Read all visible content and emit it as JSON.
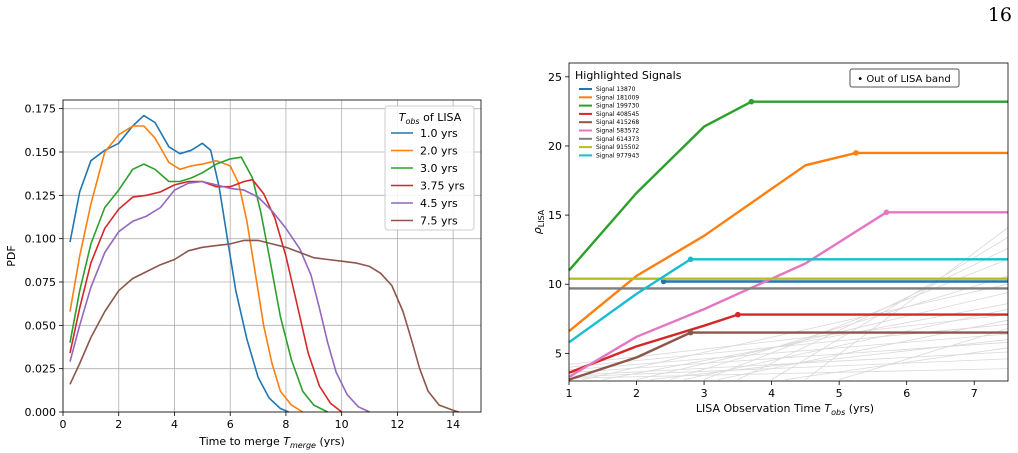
{
  "page_number": "16",
  "chart_data": [
    {
      "type": "line",
      "xlabel": "Time to merge ",
      "xlabel_math": "T",
      "xlabel_sub": "merge",
      "xlabel_unit": " (yrs)",
      "ylabel": "PDF",
      "xlim": [
        0,
        15
      ],
      "ylim": [
        0,
        0.18
      ],
      "xticks": [
        "0",
        "2",
        "4",
        "6",
        "8",
        "10",
        "12",
        "14"
      ],
      "yticks": [
        "0.000",
        "0.025",
        "0.050",
        "0.075",
        "0.100",
        "0.125",
        "0.150",
        "0.175"
      ],
      "grid": true,
      "legend_position": "top-right",
      "legend_title_math": "T",
      "legend_title_sub": "obs",
      "legend_title_rest": " of LISA",
      "series": [
        {
          "name": "1.0 yrs",
          "color": "#1f77b4",
          "points": [
            [
              0.25,
              0.098
            ],
            [
              0.6,
              0.127
            ],
            [
              1.0,
              0.145
            ],
            [
              1.5,
              0.151
            ],
            [
              2.0,
              0.155
            ],
            [
              2.5,
              0.165
            ],
            [
              2.9,
              0.171
            ],
            [
              3.3,
              0.167
            ],
            [
              3.8,
              0.153
            ],
            [
              4.2,
              0.149
            ],
            [
              4.6,
              0.151
            ],
            [
              5.0,
              0.155
            ],
            [
              5.3,
              0.151
            ],
            [
              5.6,
              0.13
            ],
            [
              5.9,
              0.1
            ],
            [
              6.2,
              0.07
            ],
            [
              6.6,
              0.042
            ],
            [
              7.0,
              0.02
            ],
            [
              7.4,
              0.008
            ],
            [
              7.8,
              0.002
            ],
            [
              8.1,
              0.0
            ]
          ]
        },
        {
          "name": "2.0 yrs",
          "color": "#ff7f0e",
          "points": [
            [
              0.25,
              0.058
            ],
            [
              0.6,
              0.09
            ],
            [
              1.0,
              0.12
            ],
            [
              1.5,
              0.15
            ],
            [
              2.0,
              0.16
            ],
            [
              2.5,
              0.165
            ],
            [
              2.9,
              0.165
            ],
            [
              3.3,
              0.158
            ],
            [
              3.8,
              0.144
            ],
            [
              4.2,
              0.14
            ],
            [
              4.6,
              0.142
            ],
            [
              5.0,
              0.143
            ],
            [
              5.5,
              0.145
            ],
            [
              6.0,
              0.142
            ],
            [
              6.3,
              0.132
            ],
            [
              6.6,
              0.11
            ],
            [
              6.9,
              0.08
            ],
            [
              7.2,
              0.05
            ],
            [
              7.5,
              0.028
            ],
            [
              7.8,
              0.012
            ],
            [
              8.2,
              0.004
            ],
            [
              8.6,
              0.0
            ]
          ]
        },
        {
          "name": "3.0 yrs",
          "color": "#2ca02c",
          "points": [
            [
              0.25,
              0.04
            ],
            [
              0.6,
              0.07
            ],
            [
              1.0,
              0.097
            ],
            [
              1.5,
              0.118
            ],
            [
              2.0,
              0.128
            ],
            [
              2.5,
              0.14
            ],
            [
              2.9,
              0.143
            ],
            [
              3.3,
              0.14
            ],
            [
              3.8,
              0.133
            ],
            [
              4.2,
              0.133
            ],
            [
              4.6,
              0.135
            ],
            [
              5.0,
              0.138
            ],
            [
              5.5,
              0.143
            ],
            [
              6.0,
              0.146
            ],
            [
              6.4,
              0.147
            ],
            [
              6.8,
              0.135
            ],
            [
              7.1,
              0.115
            ],
            [
              7.4,
              0.09
            ],
            [
              7.8,
              0.055
            ],
            [
              8.2,
              0.03
            ],
            [
              8.6,
              0.012
            ],
            [
              9.0,
              0.004
            ],
            [
              9.5,
              0.0
            ]
          ]
        },
        {
          "name": "3.75 yrs",
          "color": "#d62728",
          "points": [
            [
              0.25,
              0.034
            ],
            [
              0.6,
              0.06
            ],
            [
              1.0,
              0.086
            ],
            [
              1.5,
              0.106
            ],
            [
              2.0,
              0.117
            ],
            [
              2.5,
              0.124
            ],
            [
              3.0,
              0.125
            ],
            [
              3.5,
              0.127
            ],
            [
              4.0,
              0.131
            ],
            [
              4.5,
              0.133
            ],
            [
              5.0,
              0.133
            ],
            [
              5.5,
              0.13
            ],
            [
              6.0,
              0.13
            ],
            [
              6.5,
              0.133
            ],
            [
              6.8,
              0.134
            ],
            [
              7.2,
              0.126
            ],
            [
              7.6,
              0.112
            ],
            [
              8.0,
              0.09
            ],
            [
              8.4,
              0.062
            ],
            [
              8.8,
              0.034
            ],
            [
              9.2,
              0.015
            ],
            [
              9.6,
              0.005
            ],
            [
              10.0,
              0.0
            ]
          ]
        },
        {
          "name": "4.5 yrs",
          "color": "#9467bd",
          "points": [
            [
              0.25,
              0.029
            ],
            [
              0.6,
              0.05
            ],
            [
              1.0,
              0.072
            ],
            [
              1.5,
              0.092
            ],
            [
              2.0,
              0.104
            ],
            [
              2.5,
              0.11
            ],
            [
              3.0,
              0.113
            ],
            [
              3.5,
              0.118
            ],
            [
              4.0,
              0.128
            ],
            [
              4.5,
              0.132
            ],
            [
              5.0,
              0.133
            ],
            [
              5.5,
              0.131
            ],
            [
              6.0,
              0.129
            ],
            [
              6.5,
              0.128
            ],
            [
              7.0,
              0.124
            ],
            [
              7.5,
              0.116
            ],
            [
              8.0,
              0.106
            ],
            [
              8.5,
              0.094
            ],
            [
              8.9,
              0.079
            ],
            [
              9.2,
              0.06
            ],
            [
              9.5,
              0.04
            ],
            [
              9.8,
              0.023
            ],
            [
              10.2,
              0.01
            ],
            [
              10.6,
              0.003
            ],
            [
              11.0,
              0.0
            ]
          ]
        },
        {
          "name": "7.5 yrs",
          "color": "#8c564b",
          "points": [
            [
              0.25,
              0.016
            ],
            [
              0.6,
              0.028
            ],
            [
              1.0,
              0.043
            ],
            [
              1.5,
              0.058
            ],
            [
              2.0,
              0.07
            ],
            [
              2.5,
              0.077
            ],
            [
              3.0,
              0.081
            ],
            [
              3.5,
              0.085
            ],
            [
              4.0,
              0.088
            ],
            [
              4.5,
              0.093
            ],
            [
              5.0,
              0.095
            ],
            [
              5.5,
              0.096
            ],
            [
              6.0,
              0.097
            ],
            [
              6.5,
              0.099
            ],
            [
              7.0,
              0.099
            ],
            [
              7.5,
              0.097
            ],
            [
              8.0,
              0.095
            ],
            [
              8.5,
              0.092
            ],
            [
              9.0,
              0.089
            ],
            [
              9.5,
              0.088
            ],
            [
              10.0,
              0.087
            ],
            [
              10.5,
              0.086
            ],
            [
              11.0,
              0.084
            ],
            [
              11.4,
              0.08
            ],
            [
              11.8,
              0.073
            ],
            [
              12.2,
              0.058
            ],
            [
              12.5,
              0.042
            ],
            [
              12.8,
              0.025
            ],
            [
              13.1,
              0.012
            ],
            [
              13.5,
              0.004
            ],
            [
              14.0,
              0.001
            ],
            [
              14.2,
              0.0
            ]
          ]
        }
      ]
    },
    {
      "type": "line",
      "xlabel": "LISA Observation Time ",
      "xlabel_math": "T",
      "xlabel_sub": "obs",
      "xlabel_unit": " (yrs)",
      "ylabel_math": "ρ",
      "ylabel_sub": "LISA",
      "xlim": [
        1,
        7.5
      ],
      "ylim": [
        3,
        26
      ],
      "xticks": [
        "1",
        "2",
        "3",
        "4",
        "5",
        "6",
        "7"
      ],
      "yticks": [
        "5",
        "10",
        "15",
        "20",
        "25"
      ],
      "grid": false,
      "legend_position": "top-left",
      "legend_title": "Highlighted Signals",
      "annotation": "• Out of LISA band",
      "series": [
        {
          "name": "Signal 13870",
          "color": "#1f77b4",
          "points": [
            [
              2.4,
              10.2
            ],
            [
              7.5,
              10.2
            ]
          ],
          "marker": [
            2.4,
            10.2
          ]
        },
        {
          "name": "Signal 181009",
          "color": "#ff7f0e",
          "points": [
            [
              1,
              6.6
            ],
            [
              2,
              10.6
            ],
            [
              3,
              13.5
            ],
            [
              4.5,
              18.6
            ],
            [
              5.25,
              19.5
            ],
            [
              7.5,
              19.5
            ]
          ],
          "marker": [
            5.25,
            19.5
          ]
        },
        {
          "name": "Signal 199730",
          "color": "#2ca02c",
          "points": [
            [
              1,
              11.0
            ],
            [
              2,
              16.6
            ],
            [
              3,
              21.4
            ],
            [
              3.7,
              23.2
            ],
            [
              7.5,
              23.2
            ]
          ],
          "marker": [
            3.7,
            23.2
          ]
        },
        {
          "name": "Signal 408545",
          "color": "#d62728",
          "points": [
            [
              1,
              3.6
            ],
            [
              2,
              5.5
            ],
            [
              3,
              7.0
            ],
            [
              3.5,
              7.8
            ],
            [
              7.5,
              7.8
            ]
          ],
          "marker": [
            3.5,
            7.8
          ]
        },
        {
          "name": "Signal 415268",
          "color": "#8c564b",
          "points": [
            [
              1,
              3.1
            ],
            [
              2,
              4.7
            ],
            [
              2.8,
              6.5
            ],
            [
              7.5,
              6.5
            ]
          ],
          "marker": [
            2.8,
            6.5
          ]
        },
        {
          "name": "Signal 583572",
          "color": "#e377c2",
          "points": [
            [
              1,
              3.3
            ],
            [
              2,
              6.2
            ],
            [
              3,
              8.2
            ],
            [
              4.5,
              11.5
            ],
            [
              5.7,
              15.2
            ],
            [
              7.5,
              15.2
            ]
          ],
          "marker": [
            5.7,
            15.2
          ]
        },
        {
          "name": "Signal 614373",
          "color": "#7f7f7f",
          "points": [
            [
              1,
              9.7
            ],
            [
              7.5,
              9.7
            ]
          ]
        },
        {
          "name": "Signal 915502",
          "color": "#bcbd22",
          "points": [
            [
              1,
              10.4
            ],
            [
              7.5,
              10.4
            ]
          ]
        },
        {
          "name": "Signal 977943",
          "color": "#17becf",
          "points": [
            [
              1,
              5.8
            ],
            [
              2,
              9.3
            ],
            [
              2.8,
              11.8
            ],
            [
              7.5,
              11.8
            ]
          ],
          "marker": [
            2.8,
            11.8
          ]
        }
      ],
      "background_lines": [
        [
          [
            1,
            3.3
          ],
          [
            7.5,
            4.6
          ]
        ],
        [
          [
            1,
            3.4
          ],
          [
            7.5,
            5.1
          ]
        ],
        [
          [
            1,
            3.6
          ],
          [
            7.5,
            5.8
          ]
        ],
        [
          [
            1,
            3.8
          ],
          [
            7.5,
            6.4
          ]
        ],
        [
          [
            1,
            4.0
          ],
          [
            7.5,
            7.1
          ]
        ],
        [
          [
            1,
            4.2
          ],
          [
            7.5,
            7.8
          ]
        ],
        [
          [
            1.5,
            3.1
          ],
          [
            7.5,
            8.6
          ]
        ],
        [
          [
            2.0,
            3.1
          ],
          [
            7.5,
            9.4
          ]
        ],
        [
          [
            2.5,
            3.1
          ],
          [
            7.5,
            10.6
          ]
        ],
        [
          [
            3.0,
            3.1
          ],
          [
            7.5,
            11.8
          ]
        ],
        [
          [
            3.5,
            3.1
          ],
          [
            7.5,
            12.6
          ]
        ],
        [
          [
            4.0,
            3.1
          ],
          [
            7.5,
            13.4
          ]
        ],
        [
          [
            4.5,
            3.1
          ],
          [
            7.5,
            14.1
          ]
        ],
        [
          [
            1,
            3.2
          ],
          [
            7.5,
            3.9
          ]
        ],
        [
          [
            2.2,
            3.1
          ],
          [
            7.5,
            6.0
          ]
        ],
        [
          [
            3.2,
            3.1
          ],
          [
            7.5,
            7.4
          ]
        ],
        [
          [
            4.2,
            3.1
          ],
          [
            7.5,
            5.4
          ]
        ],
        [
          [
            1.2,
            3.1
          ],
          [
            7.5,
            10.0
          ]
        ],
        [
          [
            2.7,
            3.1
          ],
          [
            7.5,
            8.2
          ]
        ],
        [
          [
            5.0,
            3.1
          ],
          [
            7.5,
            6.8
          ]
        ]
      ]
    }
  ]
}
